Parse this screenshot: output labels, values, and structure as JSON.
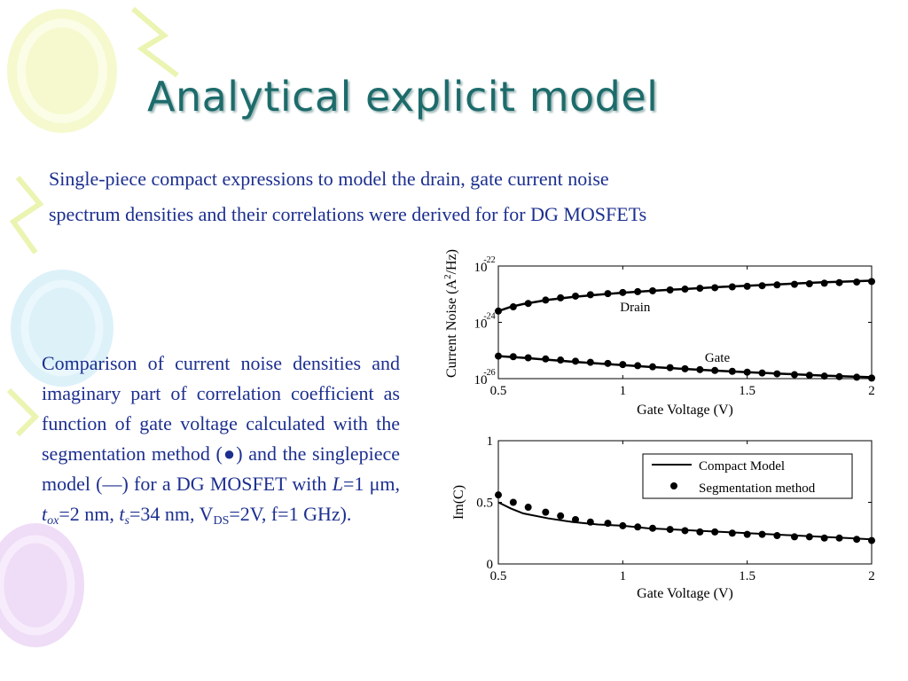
{
  "slide": {
    "title": "Analytical explicit model",
    "intro_line1": "Single-piece compact expressions to model the drain, gate current noise",
    "intro_line2": "spectrum densities and their correlations were derived for for DG MOSFETs",
    "caption": {
      "part1": "Comparison of current noise densities and imaginary part of correlation coefficient as function of gate voltage calculated with the segmentation method (",
      "dot_symbol": "●",
      "part2": ") and the singlepiece model (",
      "line_symbol": "—",
      "part3": ") for a DG MOSFET with ",
      "L_symbol": "L",
      "L_value": "=1 μm, ",
      "t_symbol": "t",
      "tox_sub": "ox",
      "tox_value": "=2 nm, ",
      "ts_sub": "s",
      "ts_value": "=34 nm, V",
      "vds_sub": "DS",
      "tail": "=2V, f=1 GHz)."
    },
    "colors": {
      "title": "#1d6b6b",
      "text": "#1c2f8f"
    },
    "decorations": [
      "balloon-yellow",
      "balloon-blue",
      "balloon-pink",
      "streamer"
    ]
  },
  "chart_data": [
    {
      "type": "line",
      "ylog": true,
      "xlabel": "Gate Voltage (V)",
      "ylabel_main": "Current Noise (A",
      "ylabel_sup": "2",
      "ylabel_end": "/Hz)",
      "xlim": [
        0.5,
        2
      ],
      "ylim_exp": [
        -26,
        -22
      ],
      "xticks": [
        "0.5",
        "1",
        "1.5",
        "2"
      ],
      "yticks": [
        {
          "base": "10",
          "exp": "-22",
          "value": -22
        },
        {
          "base": "10",
          "exp": "-24",
          "value": -24
        },
        {
          "base": "10",
          "exp": "-26",
          "value": -26
        }
      ],
      "annotations": [
        {
          "text": "Drain",
          "x": 1.05,
          "y_exp": -23.6
        },
        {
          "text": "Gate",
          "x": 1.38,
          "y_exp": -25.4
        }
      ],
      "series": [
        {
          "name": "Drain",
          "curve": {
            "x": [
              0.5,
              0.55,
              0.6,
              0.7,
              0.8,
              0.9,
              1.0,
              1.1,
              1.2,
              1.3,
              1.4,
              1.5,
              1.6,
              1.7,
              1.8,
              1.9,
              2.0
            ],
            "y_exp": [
              -23.6,
              -23.45,
              -23.35,
              -23.2,
              -23.1,
              -23.02,
              -22.95,
              -22.89,
              -22.84,
              -22.79,
              -22.74,
              -22.7,
              -22.66,
              -22.62,
              -22.58,
              -22.55,
              -22.52
            ]
          },
          "points": {
            "x": [
              0.5,
              0.56,
              0.62,
              0.69,
              0.75,
              0.81,
              0.87,
              0.94,
              1.0,
              1.06,
              1.12,
              1.19,
              1.25,
              1.31,
              1.37,
              1.44,
              1.5,
              1.56,
              1.62,
              1.69,
              1.75,
              1.81,
              1.87,
              1.94,
              2.0
            ],
            "y_exp": [
              -23.6,
              -23.45,
              -23.33,
              -23.21,
              -23.13,
              -23.07,
              -23.02,
              -22.98,
              -22.94,
              -22.91,
              -22.88,
              -22.85,
              -22.82,
              -22.79,
              -22.77,
              -22.74,
              -22.72,
              -22.7,
              -22.67,
              -22.65,
              -22.63,
              -22.61,
              -22.59,
              -22.57,
              -22.55
            ]
          }
        },
        {
          "name": "Gate",
          "curve": {
            "x": [
              0.5,
              0.6,
              0.7,
              0.8,
              0.9,
              1.0,
              1.1,
              1.2,
              1.3,
              1.4,
              1.5,
              1.6,
              1.7,
              1.8,
              1.9,
              2.0
            ],
            "y_exp": [
              -25.2,
              -25.26,
              -25.33,
              -25.4,
              -25.46,
              -25.52,
              -25.58,
              -25.63,
              -25.68,
              -25.73,
              -25.77,
              -25.81,
              -25.85,
              -25.89,
              -25.92,
              -25.95
            ]
          },
          "points": {
            "x": [
              0.5,
              0.56,
              0.62,
              0.69,
              0.75,
              0.81,
              0.87,
              0.94,
              1.0,
              1.06,
              1.12,
              1.19,
              1.25,
              1.31,
              1.37,
              1.44,
              1.5,
              1.56,
              1.62,
              1.69,
              1.75,
              1.81,
              1.87,
              1.94,
              2.0
            ],
            "y_exp": [
              -25.2,
              -25.22,
              -25.26,
              -25.3,
              -25.34,
              -25.38,
              -25.42,
              -25.46,
              -25.5,
              -25.54,
              -25.58,
              -25.61,
              -25.65,
              -25.68,
              -25.71,
              -25.74,
              -25.77,
              -25.8,
              -25.83,
              -25.86,
              -25.88,
              -25.91,
              -25.93,
              -25.95,
              -25.98
            ]
          }
        }
      ]
    },
    {
      "type": "line",
      "xlabel": "Gate Voltage (V)",
      "ylabel": "Im(C)",
      "xlim": [
        0.5,
        2
      ],
      "ylim": [
        0,
        1
      ],
      "xticks": [
        "0.5",
        "1",
        "1.5",
        "2"
      ],
      "yticks": [
        "0",
        "0.5",
        "1"
      ],
      "legend": {
        "position": "top-right",
        "entries": [
          "Compact Model",
          "Segmentation method"
        ]
      },
      "series": [
        {
          "name": "Compact Model",
          "style": "line",
          "x": [
            0.5,
            0.55,
            0.6,
            0.7,
            0.8,
            0.9,
            1.0,
            1.1,
            1.2,
            1.3,
            1.4,
            1.5,
            1.6,
            1.7,
            1.8,
            1.9,
            2.0
          ],
          "y": [
            0.5,
            0.45,
            0.41,
            0.37,
            0.34,
            0.32,
            0.31,
            0.29,
            0.28,
            0.27,
            0.26,
            0.25,
            0.24,
            0.23,
            0.22,
            0.21,
            0.2
          ]
        },
        {
          "name": "Segmentation method",
          "style": "markers",
          "x": [
            0.5,
            0.56,
            0.62,
            0.69,
            0.75,
            0.81,
            0.87,
            0.94,
            1.0,
            1.06,
            1.12,
            1.19,
            1.25,
            1.31,
            1.37,
            1.44,
            1.5,
            1.56,
            1.62,
            1.69,
            1.75,
            1.81,
            1.87,
            1.94,
            2.0
          ],
          "y": [
            0.56,
            0.5,
            0.46,
            0.42,
            0.39,
            0.36,
            0.34,
            0.33,
            0.31,
            0.3,
            0.29,
            0.28,
            0.27,
            0.26,
            0.26,
            0.25,
            0.24,
            0.24,
            0.23,
            0.22,
            0.22,
            0.21,
            0.21,
            0.2,
            0.19
          ]
        }
      ]
    }
  ]
}
